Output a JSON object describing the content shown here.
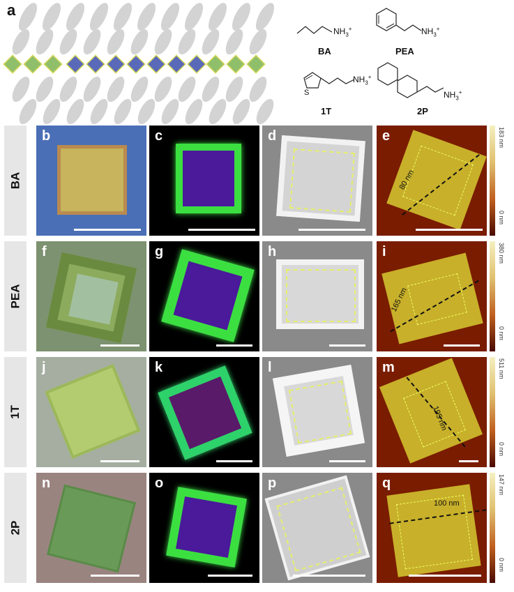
{
  "figure": {
    "panel_a": "a",
    "molecules": {
      "ba": {
        "name": "BA",
        "group": "NH",
        "sub": "3",
        "sup": "+"
      },
      "pea": {
        "name": "PEA",
        "group": "NH",
        "sub": "3",
        "sup": "+"
      },
      "t1": {
        "name": "1T",
        "group": "NH",
        "sub": "3",
        "sup": "+",
        "atom": "S"
      },
      "p2": {
        "name": "2P",
        "group": "NH",
        "sub": "3",
        "sup": "+"
      }
    },
    "rows": [
      {
        "label": "BA",
        "panels": [
          "b",
          "c",
          "d",
          "e"
        ],
        "thickness": "80 nm",
        "colorbar_max": "183 nm",
        "colorbar_min": "0 nm"
      },
      {
        "label": "PEA",
        "panels": [
          "f",
          "g",
          "h",
          "i"
        ],
        "thickness": "165 nm",
        "colorbar_max": "380 nm",
        "colorbar_min": "0 nm"
      },
      {
        "label": "1T",
        "panels": [
          "j",
          "k",
          "l",
          "m"
        ],
        "thickness": "195 nm",
        "colorbar_max": "511 nm",
        "colorbar_min": "0 nm"
      },
      {
        "label": "2P",
        "panels": [
          "n",
          "o",
          "p",
          "q"
        ],
        "thickness": "100 nm",
        "colorbar_max": "147 nm",
        "colorbar_min": "0 nm"
      }
    ],
    "colors": {
      "optical_bg_row1": "#4a6fb6",
      "pl_green": "#3be040",
      "pl_core": "#4a1a9a",
      "afm_bg": "#7a1c00",
      "afm_film": "#c8b02a",
      "sem_bg": "#8a8a8a",
      "dashed_yellow": "#f0ff60"
    }
  }
}
